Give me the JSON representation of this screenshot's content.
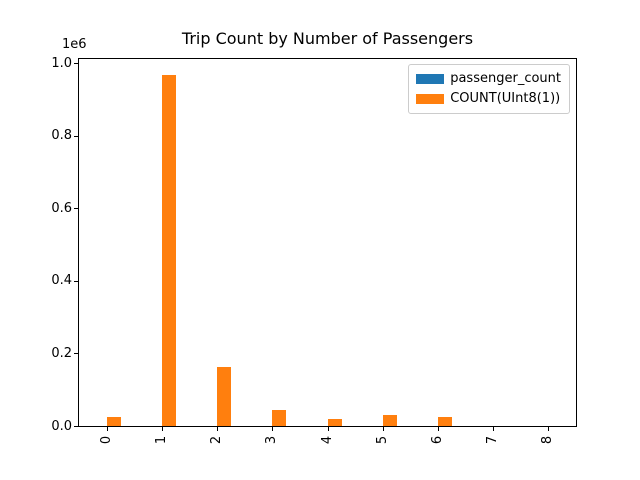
{
  "chart_data": {
    "type": "bar",
    "title": "Trip Count by Number of Passengers",
    "xlabel": "",
    "ylabel": "",
    "categories": [
      "0",
      "1",
      "2",
      "3",
      "4",
      "5",
      "6",
      "7",
      "8"
    ],
    "series": [
      {
        "name": "passenger_count",
        "color": "#1f77b4",
        "values": [
          0,
          1,
          2,
          3,
          4,
          5,
          6,
          7,
          8
        ]
      },
      {
        "name": "COUNT(UInt8(1))",
        "color": "#ff7f0e",
        "values": [
          26000,
          967000,
          163000,
          44000,
          18000,
          30000,
          24000,
          0,
          0
        ]
      }
    ],
    "y_axis": {
      "offset_label": "1e6",
      "unit": 1000000,
      "ticks": [
        0.0,
        0.2,
        0.4,
        0.6,
        0.8,
        1.0
      ],
      "tick_labels": [
        "0.0",
        "0.2",
        "0.4",
        "0.6",
        "0.8",
        "1.0"
      ],
      "ylim": [
        0,
        1014000
      ]
    },
    "x_axis": {
      "tick_labels": [
        "0",
        "1",
        "2",
        "3",
        "4",
        "5",
        "6",
        "7",
        "8"
      ],
      "tick_rotation": 90
    },
    "legend": {
      "position": "upper right",
      "entries": [
        "passenger_count",
        "COUNT(UInt8(1))"
      ]
    },
    "grid": false,
    "colors": {
      "background": "#ffffff",
      "spine": "#000000",
      "legend_border": "#cccccc",
      "text": "#000000"
    }
  }
}
